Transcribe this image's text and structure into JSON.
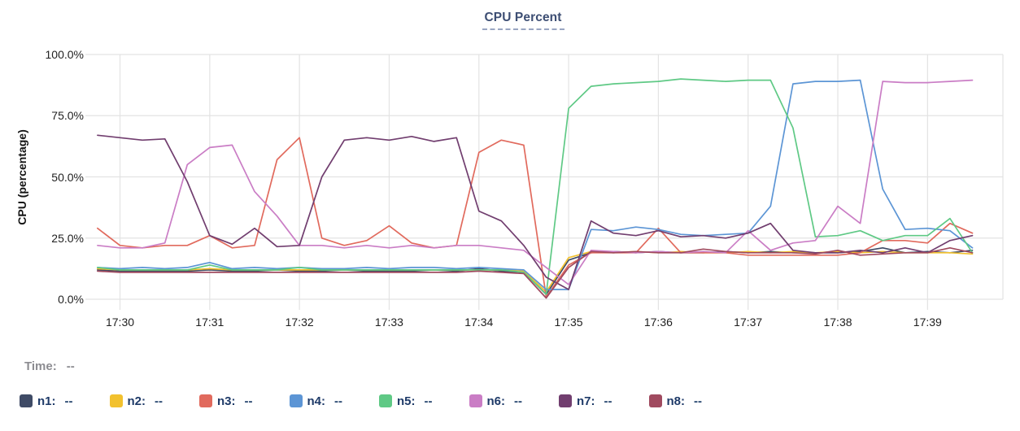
{
  "header": {
    "title": "CPU Percent"
  },
  "time_readout": {
    "label": "Time:",
    "value": "--"
  },
  "legend": {
    "items": [
      {
        "name": "n1",
        "label": "n1:",
        "value": "--",
        "color": "#3F4B66"
      },
      {
        "name": "n2",
        "label": "n2:",
        "value": "--",
        "color": "#F2C12E"
      },
      {
        "name": "n3",
        "label": "n3:",
        "value": "--",
        "color": "#E16A5D"
      },
      {
        "name": "n4",
        "label": "n4:",
        "value": "--",
        "color": "#5C95D5"
      },
      {
        "name": "n5",
        "label": "n5:",
        "value": "--",
        "color": "#5FC985"
      },
      {
        "name": "n6",
        "label": "n6:",
        "value": "--",
        "color": "#CA7DC5"
      },
      {
        "name": "n7",
        "label": "n7:",
        "value": "--",
        "color": "#713E6F"
      },
      {
        "name": "n8",
        "label": "n8:",
        "value": "--",
        "color": "#A04A5F"
      }
    ]
  },
  "colors": {
    "grid": "#E3E3E3",
    "title_text": "#3D4E73",
    "title_underline": "#9AA6C2",
    "tick_text": "#1F1F1F",
    "legend_text": "#1E3A68",
    "muted_text": "#8C8C91"
  },
  "chart_data": {
    "type": "line",
    "title": "CPU Percent",
    "xlabel": "",
    "ylabel": "CPU (percentage)",
    "ylim": [
      0,
      100
    ],
    "grid": true,
    "legend_position": "bottom",
    "x_range_minutes": [
      29.678,
      39.84
    ],
    "y_ticks": [
      {
        "value": 0,
        "label": "0.0%"
      },
      {
        "value": 25,
        "label": "25.0%"
      },
      {
        "value": 50,
        "label": "50.0%"
      },
      {
        "value": 75,
        "label": "75.0%"
      },
      {
        "value": 100,
        "label": "100.0%"
      }
    ],
    "x_ticks": [
      {
        "minute": 30,
        "label": "17:30"
      },
      {
        "minute": 31,
        "label": "17:31"
      },
      {
        "minute": 32,
        "label": "17:32"
      },
      {
        "minute": 33,
        "label": "17:33"
      },
      {
        "minute": 34,
        "label": "17:34"
      },
      {
        "minute": 35,
        "label": "17:35"
      },
      {
        "minute": 36,
        "label": "17:36"
      },
      {
        "minute": 37,
        "label": "17:37"
      },
      {
        "minute": 38,
        "label": "17:38"
      },
      {
        "minute": 39,
        "label": "17:39"
      }
    ],
    "x_minutes": [
      29.75,
      30.0,
      30.25,
      30.5,
      30.75,
      31.0,
      31.25,
      31.5,
      31.75,
      32.0,
      32.25,
      32.5,
      32.75,
      33.0,
      33.25,
      33.5,
      33.75,
      34.0,
      34.25,
      34.5,
      34.75,
      35.0,
      35.25,
      35.5,
      35.75,
      36.0,
      36.25,
      36.5,
      36.75,
      37.0,
      37.25,
      37.5,
      37.75,
      38.0,
      38.25,
      38.5,
      38.75,
      39.0,
      39.25,
      39.5
    ],
    "series": [
      {
        "name": "n1",
        "color": "#3F4B66",
        "values": [
          12,
          11.5,
          11.5,
          11.5,
          11.5,
          12,
          11.5,
          11.5,
          12,
          11.5,
          11.5,
          12,
          11.5,
          11.5,
          11.5,
          12,
          11.5,
          12.5,
          11.5,
          11,
          2,
          16,
          19,
          19.5,
          19,
          19.5,
          19,
          19,
          19.5,
          19,
          19.5,
          19,
          19,
          19,
          19.5,
          21,
          19,
          19.5,
          19,
          20
        ]
      },
      {
        "name": "n2",
        "color": "#F2C12E",
        "values": [
          12.5,
          12,
          12,
          12,
          12,
          12.5,
          12,
          12,
          12,
          12,
          12,
          12,
          12,
          12,
          12,
          12,
          12,
          12,
          12,
          11.5,
          3,
          17,
          19.5,
          19,
          19.5,
          19,
          19.5,
          19,
          19,
          19.5,
          19,
          19.5,
          19,
          19.5,
          19,
          19.5,
          19,
          19,
          19,
          18.5
        ]
      },
      {
        "name": "n3",
        "color": "#E16A5D",
        "values": [
          29,
          22,
          21,
          22,
          22,
          26,
          21,
          22,
          57,
          66,
          25,
          22,
          24,
          30,
          23,
          21,
          22,
          60,
          65,
          63,
          1,
          14,
          19,
          19,
          19,
          29,
          19,
          19,
          19,
          18,
          18,
          18,
          18,
          18,
          19,
          24,
          24,
          23,
          31,
          27
        ]
      },
      {
        "name": "n4",
        "color": "#5C95D5",
        "values": [
          13,
          12.5,
          13,
          12.5,
          13,
          15,
          12.5,
          13,
          12.5,
          13,
          12.5,
          12.5,
          13,
          12.5,
          13,
          13,
          12.5,
          13,
          12.5,
          12,
          4,
          4,
          28.5,
          28,
          29.5,
          28.5,
          26.5,
          26,
          26.5,
          27,
          38,
          88,
          89,
          89,
          89.5,
          45,
          28.5,
          29,
          28,
          21
        ]
      },
      {
        "name": "n5",
        "color": "#5FC985",
        "values": [
          13,
          12,
          12,
          12,
          12,
          14,
          12,
          12,
          12,
          13,
          12,
          12,
          12,
          12,
          12,
          12,
          12,
          12,
          12,
          11,
          2,
          78,
          87,
          88,
          88.5,
          89,
          90,
          89.5,
          89,
          89.5,
          89.5,
          70,
          25.5,
          26,
          28,
          24,
          26,
          26,
          33,
          19
        ]
      },
      {
        "name": "n6",
        "color": "#CA7DC5",
        "values": [
          22,
          21,
          21,
          23,
          55,
          62,
          63,
          44,
          34,
          22,
          22,
          21,
          22,
          21,
          22,
          21,
          22,
          22,
          21,
          20,
          13,
          6,
          20,
          19.5,
          19,
          19.5,
          19,
          19.5,
          19,
          28,
          20,
          23,
          24,
          38,
          31,
          89,
          88.5,
          88.5,
          89,
          89.5
        ]
      },
      {
        "name": "n7",
        "color": "#713E6F",
        "values": [
          67,
          66,
          65,
          65.5,
          48,
          26,
          22.5,
          29,
          21.5,
          22,
          50,
          65,
          66,
          65,
          66.5,
          64.5,
          66,
          36,
          32,
          22,
          9,
          4,
          32,
          27,
          26,
          28,
          25.5,
          26,
          25,
          27,
          31,
          20,
          19,
          19,
          20,
          19,
          21,
          19,
          24,
          26
        ]
      },
      {
        "name": "n8",
        "color": "#A04A5F",
        "values": [
          11.5,
          11,
          11,
          11,
          11,
          11,
          11,
          11,
          11,
          11,
          11,
          11,
          11,
          11,
          11,
          11,
          11,
          11.5,
          11,
          10.5,
          0.5,
          13,
          19.5,
          19,
          19.5,
          19,
          19,
          20.5,
          19.5,
          19,
          19,
          19,
          18.5,
          20,
          18,
          18.5,
          19,
          19,
          21,
          19
        ]
      }
    ]
  }
}
